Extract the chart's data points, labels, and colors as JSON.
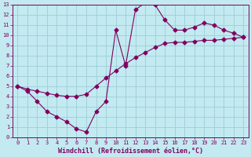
{
  "xlabel": "Windchill (Refroidissement éolien,°C)",
  "xlim": [
    -0.5,
    23.5
  ],
  "ylim": [
    0,
    13
  ],
  "xticks": [
    0,
    1,
    2,
    3,
    4,
    5,
    6,
    7,
    8,
    9,
    10,
    11,
    12,
    13,
    14,
    15,
    16,
    17,
    18,
    19,
    20,
    21,
    22,
    23
  ],
  "yticks": [
    0,
    1,
    2,
    3,
    4,
    5,
    6,
    7,
    8,
    9,
    10,
    11,
    12,
    13
  ],
  "background_color": "#c2eaf0",
  "grid_color": "#9ecdd8",
  "line_color": "#800060",
  "line1_x": [
    0,
    1,
    2,
    3,
    4,
    5,
    6,
    7,
    8,
    9,
    10,
    11,
    12,
    13,
    14,
    15,
    16,
    17,
    18,
    19,
    20,
    21,
    22,
    23
  ],
  "line1_y": [
    5.0,
    4.5,
    3.5,
    2.5,
    2.0,
    1.5,
    0.8,
    0.5,
    2.5,
    3.5,
    10.5,
    7.0,
    12.5,
    13.2,
    13.0,
    11.5,
    10.5,
    10.5,
    10.8,
    11.2,
    11.0,
    10.5,
    10.2,
    9.8
  ],
  "line2_x": [
    0,
    1,
    2,
    3,
    4,
    5,
    6,
    7,
    8,
    9,
    10,
    11,
    12,
    13,
    14,
    15,
    16,
    17,
    18,
    19,
    20,
    21,
    22,
    23
  ],
  "line2_y": [
    5.0,
    4.7,
    4.5,
    4.3,
    4.1,
    4.0,
    4.0,
    4.2,
    5.0,
    5.8,
    6.5,
    7.2,
    7.8,
    8.3,
    8.8,
    9.2,
    9.3,
    9.3,
    9.4,
    9.5,
    9.5,
    9.6,
    9.7,
    9.8
  ],
  "marker": "D",
  "markersize": 2.5,
  "linewidth": 0.8,
  "tick_fontsize": 5.0,
  "label_fontsize": 6.0
}
